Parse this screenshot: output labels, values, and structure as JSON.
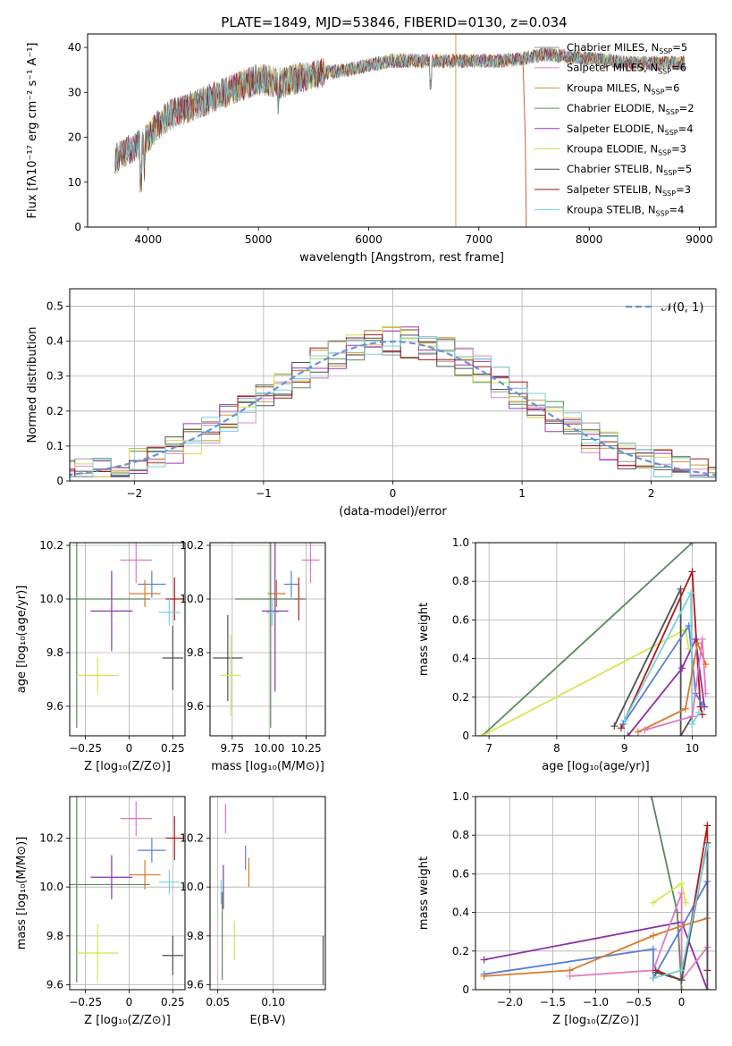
{
  "figure": {
    "title": "PLATE=1849, MJD=53846, FIBERID=0130, z=0.034"
  },
  "legend_entries": [
    {
      "label": "Chabrier MILES, N",
      "sub": "SSP",
      "eq": "=5",
      "color": "#9a9a9a"
    },
    {
      "label": "Salpeter MILES, N",
      "sub": "SSP",
      "eq": "=6",
      "color": "#e088c8"
    },
    {
      "label": "Kroupa MILES, N",
      "sub": "SSP",
      "eq": "=6",
      "color": "#c89a3c"
    },
    {
      "label": "Chabrier ELODIE, N",
      "sub": "SSP",
      "eq": "=2",
      "color": "#5a8a5a"
    },
    {
      "label": "Salpeter ELODIE, N",
      "sub": "SSP",
      "eq": "=4",
      "color": "#9a3cb4"
    },
    {
      "label": "Kroupa ELODIE, N",
      "sub": "SSP",
      "eq": "=3",
      "color": "#dada50"
    },
    {
      "label": "Chabrier STELIB, N",
      "sub": "SSP",
      "eq": "=5",
      "color": "#505050"
    },
    {
      "label": "Salpeter STELIB, N",
      "sub": "SSP",
      "eq": "=3",
      "color": "#a01818"
    },
    {
      "label": "Kroupa STELIB, N",
      "sub": "SSP",
      "eq": "=4",
      "color": "#78d2dc"
    }
  ],
  "chart_data": [
    {
      "id": "spectrum",
      "type": "line",
      "xlabel": "wavelength [Angstrom, rest frame]",
      "ylabel": "Flux [fλ10⁻¹⁷ erg cm⁻² s⁻¹ A⁻¹]",
      "xlim": [
        3450,
        9150
      ],
      "ylim": [
        0,
        43
      ],
      "xticks": [
        4000,
        5000,
        6000,
        7000,
        8000,
        9000
      ],
      "yticks": [
        0,
        10,
        20,
        30,
        40
      ],
      "continuum_x": [
        3700,
        3800,
        3900,
        4000,
        4100,
        4200,
        4300,
        4400,
        4500,
        4600,
        4800,
        5000,
        5200,
        5500,
        5800,
        6000,
        6200,
        6500,
        6800,
        7000,
        7200,
        7400,
        7600,
        7800,
        8000,
        8200,
        8400,
        8600,
        8800
      ],
      "continuum_y": [
        15,
        17,
        18,
        20,
        23,
        25,
        26,
        27,
        28,
        29,
        31,
        33,
        32,
        34,
        35,
        36,
        37,
        37,
        37,
        37,
        37,
        37.5,
        38.5,
        38,
        37.5,
        37,
        36.5,
        36.5,
        36.5
      ]
    },
    {
      "id": "residuals",
      "type": "line",
      "xlabel": "(data-model)/error",
      "ylabel": "Normed distribution",
      "xlim": [
        -2.5,
        2.5
      ],
      "ylim": [
        0,
        0.55
      ],
      "xticks": [
        -2,
        -1,
        0,
        1,
        2
      ],
      "yticks": [
        0.0,
        0.1,
        0.2,
        0.3,
        0.4,
        0.5
      ],
      "legend": "𝒩(0, 1)"
    },
    {
      "id": "age_vs_Z",
      "type": "scatter",
      "xlabel": "Z [log₁₀(Z/Z⊙)]",
      "ylabel": "age  [log₁₀(age/yr)]",
      "xlim": [
        -0.34,
        0.32
      ],
      "ylim": [
        9.49,
        10.21
      ],
      "xticks": [
        -0.25,
        0.0,
        0.25
      ],
      "yticks": [
        9.6,
        9.8,
        10.0,
        10.2
      ],
      "points": [
        {
          "x": 0.04,
          "y": 10.145,
          "xe": 0.09,
          "ye": 0.085,
          "c": "#e377c2"
        },
        {
          "x": 0.13,
          "y": 10.055,
          "xe": 0.08,
          "ye": 0.05,
          "c": "#5a7fd6"
        },
        {
          "x": 0.09,
          "y": 10.02,
          "xe": 0.09,
          "ye": 0.05,
          "c": "#d97a26"
        },
        {
          "x": 0.26,
          "y": 10.0,
          "xe": 0.05,
          "ye": 0.08,
          "c": "#b01818"
        },
        {
          "x": -0.3,
          "y": 10.0,
          "xe": 0.42,
          "ye": 0.48,
          "c": "#5a8a5a"
        },
        {
          "x": -0.1,
          "y": 9.955,
          "xe": 0.12,
          "ye": 0.15,
          "c": "#8e2fa8"
        },
        {
          "x": 0.23,
          "y": 9.95,
          "xe": 0.06,
          "ye": 0.05,
          "c": "#78d2dc"
        },
        {
          "x": 0.25,
          "y": 9.78,
          "xe": 0.06,
          "ye": 0.12,
          "c": "#505050"
        },
        {
          "x": -0.18,
          "y": 9.715,
          "xe": 0.12,
          "ye": 0.07,
          "c": "#d4e650"
        }
      ]
    },
    {
      "id": "age_vs_mass",
      "type": "scatter",
      "xlabel": "mass [log₁₀(M/M⊙)]",
      "ylabel": "",
      "xlim": [
        9.6,
        10.38
      ],
      "ylim": [
        9.49,
        10.21
      ],
      "xticks": [
        9.75,
        10.0,
        10.25
      ],
      "yticks": [
        9.6,
        9.8,
        10.0,
        10.2
      ],
      "points": [
        {
          "x": 10.28,
          "y": 10.145,
          "xe": 0.06,
          "ye": 0.085,
          "c": "#e377c2"
        },
        {
          "x": 10.15,
          "y": 10.055,
          "xe": 0.05,
          "ye": 0.05,
          "c": "#5a7fd6"
        },
        {
          "x": 10.05,
          "y": 10.02,
          "xe": 0.06,
          "ye": 0.05,
          "c": "#d97a26"
        },
        {
          "x": 10.2,
          "y": 10.0,
          "xe": 0.03,
          "ye": 0.08,
          "c": "#b01818"
        },
        {
          "x": 10.01,
          "y": 10.0,
          "xe": 0.24,
          "ye": 0.48,
          "c": "#5a8a5a"
        },
        {
          "x": 10.04,
          "y": 9.955,
          "xe": 0.09,
          "ye": 0.3,
          "c": "#8e2fa8"
        },
        {
          "x": 10.02,
          "y": 9.95,
          "xe": 0.04,
          "ye": 0.05,
          "c": "#78d2dc"
        },
        {
          "x": 9.72,
          "y": 9.78,
          "xe": 0.1,
          "ye": 0.16,
          "c": "#505050"
        },
        {
          "x": 9.74,
          "y": 9.715,
          "xe": 0.07,
          "ye": 0.15,
          "c": "#d4e650"
        }
      ]
    },
    {
      "id": "weight_vs_age",
      "type": "line",
      "xlabel": "age  [log₁₀(age/yr)]",
      "ylabel": "mass weight",
      "xlim": [
        6.8,
        10.35
      ],
      "ylim": [
        0,
        1
      ],
      "xticks": [
        7,
        8,
        9,
        10
      ],
      "yticks": [
        0.0,
        0.2,
        0.4,
        0.6,
        0.8,
        1.0
      ],
      "series": [
        {
          "c": "#5a8a5a",
          "x": [
            6.9,
            10.0
          ],
          "y": [
            0.0,
            1.0
          ]
        },
        {
          "c": "#d4e650",
          "x": [
            6.9,
            9.9,
            9.95
          ],
          "y": [
            0.0,
            0.55,
            0.45
          ]
        },
        {
          "c": "#505050",
          "x": [
            8.85,
            9.83,
            9.83,
            10.0
          ],
          "y": [
            0.05,
            0.76,
            0.0,
            0.1
          ]
        },
        {
          "c": "#b01818",
          "x": [
            8.95,
            10.0,
            10.12,
            10.15
          ],
          "y": [
            0.04,
            0.85,
            0.15,
            0.11
          ]
        },
        {
          "c": "#8e2fa8",
          "x": [
            9.05,
            9.85,
            10.05,
            10.18
          ],
          "y": [
            0.0,
            0.35,
            0.5,
            0.15
          ]
        },
        {
          "c": "#5a7fd6",
          "x": [
            8.98,
            9.95,
            10.05,
            10.15
          ],
          "y": [
            0.06,
            0.57,
            0.22,
            0.16
          ]
        },
        {
          "c": "#78d2dc",
          "x": [
            9.0,
            9.98,
            10.0,
            10.1
          ],
          "y": [
            0.08,
            0.74,
            0.06,
            0.12
          ]
        },
        {
          "c": "#d97a26",
          "x": [
            9.2,
            9.9,
            10.08,
            10.2
          ],
          "y": [
            0.02,
            0.14,
            0.48,
            0.37
          ]
        },
        {
          "c": "#e377c2",
          "x": [
            9.3,
            10.0,
            10.15,
            10.2
          ],
          "y": [
            0.03,
            0.1,
            0.5,
            0.22
          ]
        }
      ]
    },
    {
      "id": "mass_vs_Z",
      "type": "scatter",
      "xlabel": "Z [log₁₀(Z/Z⊙)]",
      "ylabel": "mass [log₁₀(M/M⊙)]",
      "xlim": [
        -0.34,
        0.32
      ],
      "ylim": [
        9.58,
        10.37
      ],
      "xticks": [
        -0.25,
        0.0,
        0.25
      ],
      "yticks": [
        9.6,
        9.8,
        10.0,
        10.2
      ],
      "points": [
        {
          "x": 0.04,
          "y": 10.28,
          "xe": 0.09,
          "ye": 0.07,
          "c": "#e377c2"
        },
        {
          "x": 0.26,
          "y": 10.2,
          "xe": 0.05,
          "ye": 0.09,
          "c": "#b01818"
        },
        {
          "x": 0.13,
          "y": 10.15,
          "xe": 0.08,
          "ye": 0.05,
          "c": "#5a7fd6"
        },
        {
          "x": 0.09,
          "y": 10.05,
          "xe": 0.09,
          "ye": 0.06,
          "c": "#d97a26"
        },
        {
          "x": -0.1,
          "y": 10.04,
          "xe": 0.12,
          "ye": 0.09,
          "c": "#8e2fa8"
        },
        {
          "x": 0.23,
          "y": 10.02,
          "xe": 0.06,
          "ye": 0.05,
          "c": "#78d2dc"
        },
        {
          "x": -0.3,
          "y": 10.01,
          "xe": 0.42,
          "ye": 0.4,
          "c": "#5a8a5a"
        },
        {
          "x": -0.18,
          "y": 9.73,
          "xe": 0.12,
          "ye": 0.12,
          "c": "#d4e650"
        },
        {
          "x": 0.25,
          "y": 9.72,
          "xe": 0.06,
          "ye": 0.08,
          "c": "#505050"
        }
      ]
    },
    {
      "id": "mass_vs_ebv",
      "type": "scatter",
      "xlabel": "E(B-V)",
      "ylabel": "",
      "xlim": [
        0.043,
        0.147
      ],
      "ylim": [
        9.58,
        10.37
      ],
      "xticks": [
        0.05,
        0.1
      ],
      "yticks": [
        9.6,
        9.8,
        10.0,
        10.2
      ],
      "points": [
        {
          "x": 0.057,
          "y": 10.28,
          "xe": 0.0,
          "ye": 0.06,
          "c": "#e377c2"
        },
        {
          "x": 0.075,
          "y": 10.12,
          "xe": 0.0,
          "ye": 0.05,
          "c": "#5a7fd6"
        },
        {
          "x": 0.078,
          "y": 10.06,
          "xe": 0.0,
          "ye": 0.06,
          "c": "#d97a26"
        },
        {
          "x": 0.055,
          "y": 10.0,
          "xe": 0.0,
          "ye": 0.09,
          "c": "#8e2fa8"
        },
        {
          "x": 0.053,
          "y": 9.98,
          "xe": 0.0,
          "ye": 0.05,
          "c": "#78d2dc"
        },
        {
          "x": 0.054,
          "y": 9.8,
          "xe": 0.0,
          "ye": 0.18,
          "c": "#5a8a5a"
        },
        {
          "x": 0.065,
          "y": 9.78,
          "xe": 0.0,
          "ye": 0.08,
          "c": "#d4e650"
        },
        {
          "x": 0.145,
          "y": 9.7,
          "xe": 0.0,
          "ye": 0.1,
          "c": "#505050"
        }
      ]
    },
    {
      "id": "weight_vs_Z",
      "type": "line",
      "xlabel": "Z [log₁₀(Z/Z⊙)]",
      "ylabel": "mass weight",
      "xlim": [
        -2.4,
        0.4
      ],
      "ylim": [
        0,
        1
      ],
      "xticks": [
        -2.0,
        -1.5,
        -1.0,
        -0.5,
        0.0
      ],
      "yticks": [
        0.0,
        0.2,
        0.4,
        0.6,
        0.8,
        1.0
      ],
      "series": [
        {
          "c": "#5a8a5a",
          "x": [
            -0.35,
            -0.05,
            0.0
          ],
          "y": [
            1.0,
            0.4,
            0.0
          ]
        },
        {
          "c": "#8e2fa8",
          "x": [
            -2.3,
            0.0,
            0.3
          ],
          "y": [
            0.155,
            0.35,
            0.0
          ]
        },
        {
          "c": "#5a7fd6",
          "x": [
            -2.3,
            -0.33,
            -0.33,
            0.3
          ],
          "y": [
            0.08,
            0.21,
            0.06,
            0.56
          ]
        },
        {
          "c": "#d97a26",
          "x": [
            -2.3,
            -1.3,
            -0.33,
            0.0,
            0.3
          ],
          "y": [
            0.07,
            0.1,
            0.28,
            0.33,
            0.37
          ]
        },
        {
          "c": "#e377c2",
          "x": [
            -1.3,
            -0.33,
            0.0,
            0.0,
            0.3
          ],
          "y": [
            0.07,
            0.1,
            0.5,
            0.05,
            0.22
          ]
        },
        {
          "c": "#d4e650",
          "x": [
            -0.33,
            0.0,
            0.05
          ],
          "y": [
            0.45,
            0.55,
            0.45
          ]
        },
        {
          "c": "#b01818",
          "x": [
            -0.3,
            0.0,
            0.3,
            0.3
          ],
          "y": [
            0.1,
            0.05,
            0.85,
            0.1
          ]
        },
        {
          "c": "#505050",
          "x": [
            -0.3,
            0.0,
            0.3,
            0.3
          ],
          "y": [
            0.09,
            0.05,
            0.76,
            0.0
          ]
        },
        {
          "c": "#78d2dc",
          "x": [
            -0.33,
            0.0,
            0.3
          ],
          "y": [
            0.06,
            0.1,
            0.74
          ]
        }
      ]
    }
  ]
}
